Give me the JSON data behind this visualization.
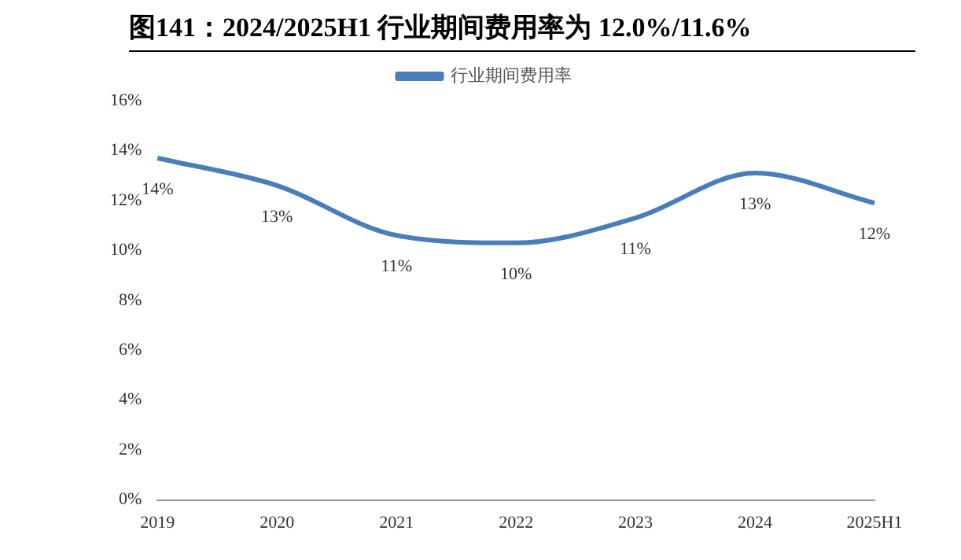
{
  "chart_data": {
    "type": "line",
    "title": "图141：2024/2025H1 行业期间费用率为 12.0%/11.6%",
    "categories": [
      "2019",
      "2020",
      "2021",
      "2022",
      "2023",
      "2024",
      "2025H1"
    ],
    "series": [
      {
        "name": "行业期间费用率",
        "color": "#4a7ebb",
        "values": [
          13.7,
          12.6,
          10.6,
          10.3,
          11.3,
          13.1,
          11.9
        ],
        "value_labels": [
          "14%",
          "13%",
          "11%",
          "10%",
          "11%",
          "13%",
          "12%"
        ]
      }
    ],
    "ylim": [
      0,
      16
    ],
    "yticks": [
      {
        "value": 0,
        "label": "0%"
      },
      {
        "value": 2,
        "label": "2%"
      },
      {
        "value": 4,
        "label": "4%"
      },
      {
        "value": 6,
        "label": "6%"
      },
      {
        "value": 8,
        "label": "8%"
      },
      {
        "value": 10,
        "label": "10%"
      },
      {
        "value": 12,
        "label": "12%"
      },
      {
        "value": 14,
        "label": "14%"
      },
      {
        "value": 16,
        "label": "16%"
      }
    ],
    "grid": false,
    "legend": "top",
    "marker": "none",
    "line_style": "solid"
  }
}
